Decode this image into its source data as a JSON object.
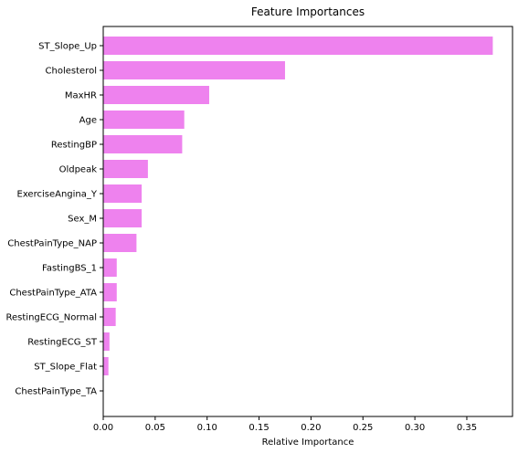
{
  "chart_data": {
    "type": "bar",
    "orientation": "horizontal",
    "title": "Feature Importances",
    "xlabel": "Relative Importance",
    "ylabel": "",
    "categories": [
      "ST_Slope_Up",
      "Cholesterol",
      "MaxHR",
      "Age",
      "RestingBP",
      "Oldpeak",
      "ExerciseAngina_Y",
      "Sex_M",
      "ChestPainType_NAP",
      "FastingBS_1",
      "ChestPainType_ATA",
      "RestingECG_Normal",
      "RestingECG_ST",
      "ST_Slope_Flat",
      "ChestPainType_TA"
    ],
    "values": [
      0.375,
      0.175,
      0.102,
      0.078,
      0.076,
      0.043,
      0.037,
      0.037,
      0.032,
      0.013,
      0.013,
      0.012,
      0.006,
      0.005,
      0.0
    ],
    "xlim": [
      0,
      0.394
    ],
    "xticks": [
      0.0,
      0.05,
      0.1,
      0.15,
      0.2,
      0.25,
      0.3,
      0.35
    ],
    "xtick_labels": [
      "0.00",
      "0.05",
      "0.10",
      "0.15",
      "0.20",
      "0.25",
      "0.30",
      "0.35"
    ],
    "bar_color": "#ee82ee",
    "grid": false,
    "legend": "none"
  }
}
